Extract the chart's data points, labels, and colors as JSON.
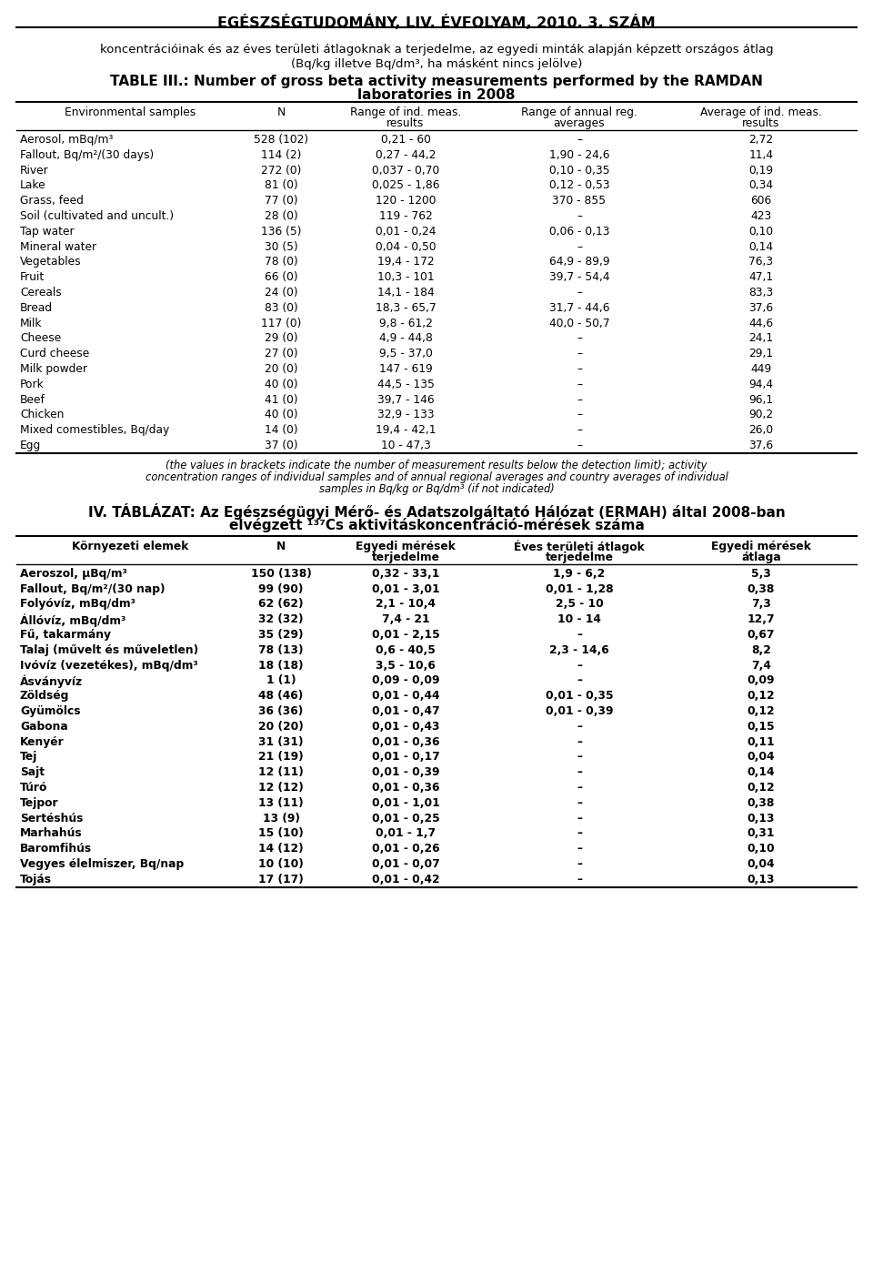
{
  "page_title": "EGÉSZSÉGTUDOMÁNY, LIV. ÉVFOLYAM, 2010. 3. SZÁM",
  "intro_text_line1": "koncentrációinak és az éves területi átlagoknak a terjedelme, az egyedi minták alapján képzett országos átlag",
  "intro_text_line2": "(Bq/kg illetve Bq/dm³, ha másként nincs jelölve)",
  "table1_title_line1": "TABLE III.: Number of gross beta activity measurements performed by the RAMDAN",
  "table1_title_line2": "laboratories in 2008",
  "table1_header_row1": [
    "Environmental samples",
    "N",
    "Range of ind. meas.",
    "Range of annual reg.",
    "Average of ind. meas."
  ],
  "table1_header_row2": [
    "",
    "",
    "results",
    "averages",
    "results"
  ],
  "table1_data": [
    [
      "Aerosol, mBq/m³",
      "528 (102)",
      "0,21 - 60",
      "–",
      "2,72"
    ],
    [
      "Fallout, Bq/m²/(30 days)",
      "114 (2)",
      "0,27 - 44,2",
      "1,90 - 24,6",
      "11,4"
    ],
    [
      "River",
      "272 (0)",
      "0,037 - 0,70",
      "0,10 - 0,35",
      "0,19"
    ],
    [
      "Lake",
      "81 (0)",
      "0,025 - 1,86",
      "0,12 - 0,53",
      "0,34"
    ],
    [
      "Grass, feed",
      "77 (0)",
      "120 - 1200",
      "370 - 855",
      "606"
    ],
    [
      "Soil (cultivated and uncult.)",
      "28 (0)",
      "119 - 762",
      "–",
      "423"
    ],
    [
      "Tap water",
      "136 (5)",
      "0,01 - 0,24",
      "0,06 - 0,13",
      "0,10"
    ],
    [
      "Mineral water",
      "30 (5)",
      "0,04 - 0,50",
      "–",
      "0,14"
    ],
    [
      "Vegetables",
      "78 (0)",
      "19,4 - 172",
      "64,9 - 89,9",
      "76,3"
    ],
    [
      "Fruit",
      "66 (0)",
      "10,3 - 101",
      "39,7 - 54,4",
      "47,1"
    ],
    [
      "Cereals",
      "24 (0)",
      "14,1 - 184",
      "–",
      "83,3"
    ],
    [
      "Bread",
      "83 (0)",
      "18,3 - 65,7",
      "31,7 - 44,6",
      "37,6"
    ],
    [
      "Milk",
      "117 (0)",
      "9,8 - 61,2",
      "40,0 - 50,7",
      "44,6"
    ],
    [
      "Cheese",
      "29 (0)",
      "4,9 - 44,8",
      "–",
      "24,1"
    ],
    [
      "Curd cheese",
      "27 (0)",
      "9,5 - 37,0",
      "–",
      "29,1"
    ],
    [
      "Milk powder",
      "20 (0)",
      "147 - 619",
      "–",
      "449"
    ],
    [
      "Pork",
      "40 (0)",
      "44,5 - 135",
      "–",
      "94,4"
    ],
    [
      "Beef",
      "41 (0)",
      "39,7 - 146",
      "–",
      "96,1"
    ],
    [
      "Chicken",
      "40 (0)",
      "32,9 - 133",
      "–",
      "90,2"
    ],
    [
      "Mixed comestibles, Bq/day",
      "14 (0)",
      "19,4 - 42,1",
      "–",
      "26,0"
    ],
    [
      "Egg",
      "37 (0)",
      "10 - 47,3",
      "–",
      "37,6"
    ]
  ],
  "table1_footnote_line1": "(the values in brackets indicate the number of measurement results below the detection limit); activity",
  "table1_footnote_line2": "concentration ranges of individual samples and of annual regional averages and country averages of individual",
  "table1_footnote_line3": "samples in Bq/kg or Bq/dm³ (if not indicated)",
  "table2_title_line1": "IV. TÁBLÁZAT: Az Egészségügyi Mérő- és Adatszolgáltató Hálózat (ERMAH) által 2008-ban",
  "table2_title_line2": "elvégzett ¹³⁷Cs aktivitáskoncentráció-mérések száma",
  "table2_header_row1": [
    "Környezeti elemek",
    "N",
    "Egyedi mérések",
    "Éves területi átlagok",
    "Egyedi mérések"
  ],
  "table2_header_row2": [
    "",
    "",
    "terjedelme",
    "terjedelme",
    "átlaga"
  ],
  "table2_data": [
    [
      "Aeroszol, μBq/m³",
      "150 (138)",
      "0,32 - 33,1",
      "1,9 - 6,2",
      "5,3"
    ],
    [
      "Fallout, Bq/m²/(30 nap)",
      "99 (90)",
      "0,01 - 3,01",
      "0,01 - 1,28",
      "0,38"
    ],
    [
      "Folyóvíz, mBq/dm³",
      "62 (62)",
      "2,1 - 10,4",
      "2,5 - 10",
      "7,3"
    ],
    [
      "Állóvíz, mBq/dm³",
      "32 (32)",
      "7,4 - 21",
      "10 - 14",
      "12,7"
    ],
    [
      "Fű, takarmány",
      "35 (29)",
      "0,01 - 2,15",
      "–",
      "0,67"
    ],
    [
      "Talaj (művelt és műveletlen)",
      "78 (13)",
      "0,6 - 40,5",
      "2,3 - 14,6",
      "8,2"
    ],
    [
      "Ivóvíz (vezetékes), mBq/dm³",
      "18 (18)",
      "3,5 - 10,6",
      "–",
      "7,4"
    ],
    [
      "Ásványvíz",
      "1 (1)",
      "0,09 - 0,09",
      "–",
      "0,09"
    ],
    [
      "Zöldség",
      "48 (46)",
      "0,01 - 0,44",
      "0,01 - 0,35",
      "0,12"
    ],
    [
      "Gyümölcs",
      "36 (36)",
      "0,01 - 0,47",
      "0,01 - 0,39",
      "0,12"
    ],
    [
      "Gabona",
      "20 (20)",
      "0,01 - 0,43",
      "–",
      "0,15"
    ],
    [
      "Kenyér",
      "31 (31)",
      "0,01 - 0,36",
      "–",
      "0,11"
    ],
    [
      "Tej",
      "21 (19)",
      "0,01 - 0,17",
      "–",
      "0,04"
    ],
    [
      "Sajt",
      "12 (11)",
      "0,01 - 0,39",
      "–",
      "0,14"
    ],
    [
      "Túró",
      "12 (12)",
      "0,01 - 0,36",
      "–",
      "0,12"
    ],
    [
      "Tejpor",
      "13 (11)",
      "0,01 - 1,01",
      "–",
      "0,38"
    ],
    [
      "Sertéshús",
      "13 (9)",
      "0,01 - 0,25",
      "–",
      "0,13"
    ],
    [
      "Marhahús",
      "15 (10)",
      "0,01 - 1,7",
      "–",
      "0,31"
    ],
    [
      "Baromfihús",
      "14 (12)",
      "0,01 - 0,26",
      "–",
      "0,10"
    ],
    [
      "Vegyes élelmiszer, Bq/nap",
      "10 (10)",
      "0,01 - 0,07",
      "–",
      "0,04"
    ],
    [
      "Tojás",
      "17 (17)",
      "0,01 - 0,42",
      "–",
      "0,13"
    ]
  ],
  "background_color": "#ffffff",
  "text_color": "#000000",
  "border_color": "#000000",
  "fig_width": 9.6,
  "fig_height": 13.9,
  "dpi": 100
}
